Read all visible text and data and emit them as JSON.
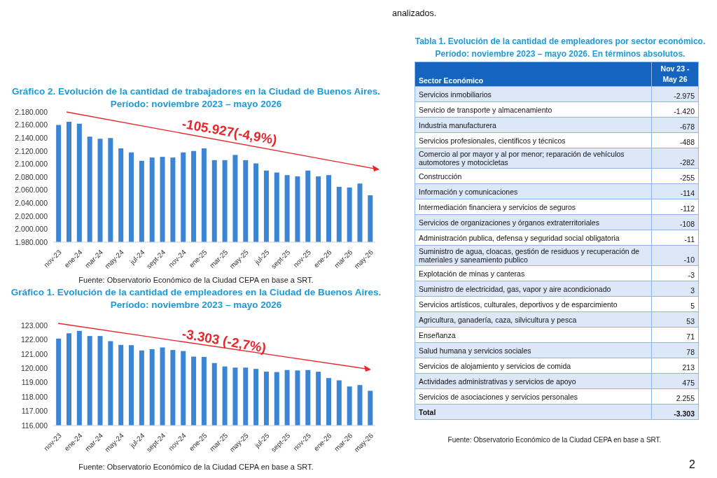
{
  "chart_data": [
    {
      "type": "bar",
      "title": "Gráfico 2. Evolución de la cantidad de trabajadores en la Ciudad de Buenos Aires.",
      "subtitle": "Período: noviembre 2023 – mayo 2026",
      "categories": [
        "nov-23",
        null,
        "ene-24",
        null,
        "mar-24",
        null,
        "may-24",
        null,
        "jul-24",
        null,
        "sept-24",
        null,
        "nov-24",
        null,
        "ene-25",
        null,
        "mar-25",
        null,
        "may-25",
        null,
        "jul-25",
        null,
        "sept-25",
        null,
        "nov-25",
        null,
        "ene-26",
        null,
        "mar-26",
        null,
        "may-26"
      ],
      "values": [
        2160000,
        2165000,
        2162000,
        2142000,
        2139000,
        2140000,
        2124000,
        2118000,
        2105000,
        2110000,
        2111000,
        2110000,
        2118000,
        2120000,
        2124000,
        2106000,
        2106000,
        2114000,
        2106000,
        2101000,
        2090000,
        2087000,
        2083000,
        2081000,
        2090000,
        2081000,
        2083000,
        2065000,
        2064000,
        2070000,
        2052000
      ],
      "color": "#3c84d4",
      "ylim": [
        1980000,
        2180000
      ],
      "yticks": [
        {
          "value": 1980000,
          "label": "1.980.000"
        },
        {
          "value": 2000000,
          "label": "2.000.000"
        },
        {
          "value": 2020000,
          "label": "2.020.000"
        },
        {
          "value": 2040000,
          "label": "2.040.000"
        },
        {
          "value": 2060000,
          "label": "2.060.000"
        },
        {
          "value": 2080000,
          "label": "2.080.000"
        },
        {
          "value": 2100000,
          "label": "2.100.000"
        },
        {
          "value": 2120000,
          "label": "2.120.000"
        },
        {
          "value": 2140000,
          "label": "2.140.000"
        },
        {
          "value": 2160000,
          "label": "2.160.000"
        },
        {
          "value": 2180000,
          "label": "2.180.000"
        }
      ],
      "annotations": [
        "-105.927(-4,9%)",
        "Fuente: Observatorio Económico de la Ciudad CEPA en base a SRT."
      ]
    },
    {
      "type": "bar",
      "title": "Gráfico 1. Evolución de la cantidad de empleadores en la Ciudad de Buenos Aires.",
      "subtitle": "Período: noviembre 2023 – mayo 2026",
      "categories": [
        "nov-23",
        null,
        "ene-24",
        null,
        "mar-24",
        null,
        "may-24",
        null,
        "jul-24",
        null,
        "sept-24",
        null,
        "nov-24",
        null,
        "ene-25",
        null,
        "mar-25",
        null,
        "may-25",
        null,
        "jul-25",
        null,
        "sept-25",
        null,
        "nov-25",
        null,
        "ene-26",
        null,
        "mar-26",
        null,
        "may-26"
      ],
      "values": [
        122080,
        122450,
        122620,
        122260,
        122260,
        121900,
        121640,
        121620,
        121250,
        121340,
        121460,
        121280,
        121210,
        120820,
        120800,
        120370,
        120130,
        120050,
        120050,
        119960,
        119770,
        119740,
        119880,
        119850,
        119880,
        119760,
        119320,
        119160,
        118730,
        118830,
        118430
      ],
      "color": "#3c84d4",
      "ylim": [
        116000,
        123000
      ],
      "yticks": [
        {
          "value": 116000,
          "label": "116.000"
        },
        {
          "value": 117000,
          "label": "117.000"
        },
        {
          "value": 118000,
          "label": "118.000"
        },
        {
          "value": 119000,
          "label": "119.000"
        },
        {
          "value": 120000,
          "label": "120.000"
        },
        {
          "value": 121000,
          "label": "121.000"
        },
        {
          "value": 122000,
          "label": "122.000"
        },
        {
          "value": 123000,
          "label": "123.000"
        }
      ],
      "annotations": [
        "-3.303 (-2,7%)",
        "Fuente: Observatorio Económico de la Ciudad CEPA en base a SRT."
      ]
    },
    {
      "type": "other",
      "title": "Tabla 1. Evolución de la cantidad de empleadores por sector económico.",
      "subtitle": "Período: noviembre 2023 – mayo 2026. En términos absolutos.",
      "xlabel": "Sector Económico",
      "ylabel": "Nov 23 - May 26",
      "categories": [
        "Servicios inmobiliarios",
        "Servicio de transporte y almacenamiento",
        "Industria manufacturera",
        "Servicios profesionales, cientificos y técnicos",
        "Comercio al por mayor y al por menor; reparación de vehículos automotores y motocicletas",
        "Construcción",
        "Información y comunicaciones",
        "Intermediación financiera y servicios de seguros",
        "Servicios de organizaciones y órganos extraterritoriales",
        "Administración publica, defensa y seguridad social obligatoria",
        "Suministro de agua, cloacas, gestión de residuos y recuperación de materiales y saneamiento publico",
        "Explotación de minas y canteras",
        "Suministro de electricidad, gas, vapor y aire acondicionado",
        "Servicios artísticos, culturales, deportivos y de esparcimiento",
        "Agricultura, ganadería, caza, silvicultura y pesca",
        "Enseñanza",
        "Salud humana y servicios sociales",
        "Servicios de alojamiento y servicios de comida",
        "Actividades administrativas y servicios de apoyo",
        "Servicios de asociaciones y servicios personales",
        "Total"
      ],
      "value_labels": [
        "-2.975",
        "-1.420",
        "-678",
        "-488",
        "-282",
        "-255",
        "-114",
        "-112",
        "-108",
        "-11",
        "-10",
        "-3",
        "3",
        "5",
        "53",
        "71",
        "78",
        "213",
        "475",
        "2.255",
        "-3.303"
      ],
      "annotations": [
        "Fuente: Observatorio Económico de la Ciudad CEPA en base a SRT.",
        "analizados.",
        "2"
      ]
    }
  ]
}
